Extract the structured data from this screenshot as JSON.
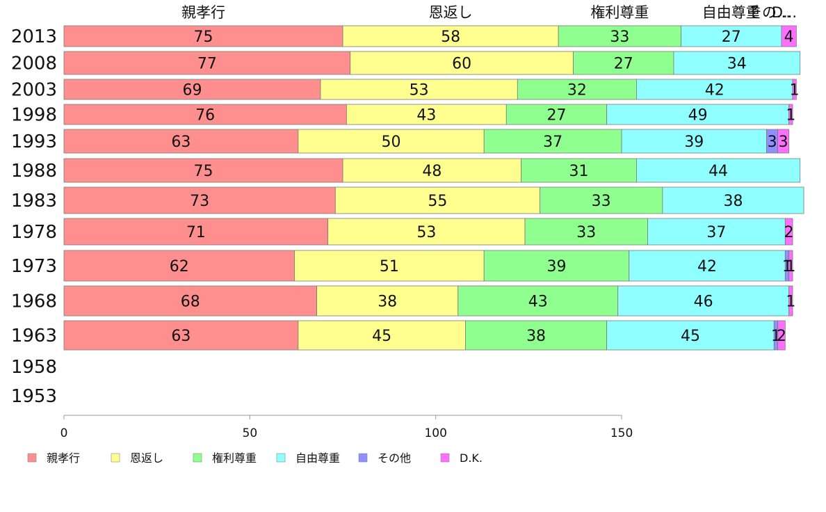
{
  "chart_data": {
    "type": "bar",
    "orientation": "horizontal",
    "stacked": true,
    "categories": [
      "2013",
      "2008",
      "2003",
      "1998",
      "1993",
      "1988",
      "1983",
      "1978",
      "1973",
      "1968",
      "1963",
      "1958",
      "1953"
    ],
    "series": [
      {
        "name": "親孝行",
        "color": "#ff8f8f",
        "values": [
          75,
          77,
          69,
          76,
          63,
          75,
          73,
          71,
          62,
          68,
          63,
          null,
          null
        ]
      },
      {
        "name": "恩返し",
        "color": "#ffff8f",
        "values": [
          58,
          60,
          53,
          43,
          50,
          48,
          55,
          53,
          51,
          38,
          45,
          null,
          null
        ]
      },
      {
        "name": "権利尊重",
        "color": "#8fff8f",
        "values": [
          33,
          27,
          32,
          27,
          37,
          31,
          33,
          33,
          39,
          43,
          38,
          null,
          null
        ]
      },
      {
        "name": "自由尊重",
        "color": "#8fffff",
        "values": [
          27,
          34,
          42,
          49,
          39,
          44,
          38,
          37,
          42,
          46,
          45,
          null,
          null
        ]
      },
      {
        "name": "その他",
        "color": "#8f8fff",
        "values": [
          0,
          0,
          0,
          0,
          3,
          0,
          0,
          0,
          1,
          0,
          1,
          null,
          null
        ]
      },
      {
        "name": "D.K.",
        "color": "#ff6fff",
        "values": [
          4,
          0,
          1,
          1,
          3,
          0,
          0,
          2,
          1,
          1,
          2,
          null,
          null
        ]
      }
    ],
    "top_labels": [
      "親孝行",
      "恩返し",
      "権利尊重",
      "自由尊重",
      "その...",
      "D..."
    ],
    "xlim": [
      0,
      200
    ],
    "xticks": [
      0,
      50,
      100,
      150
    ],
    "legend_position": "bottom"
  }
}
